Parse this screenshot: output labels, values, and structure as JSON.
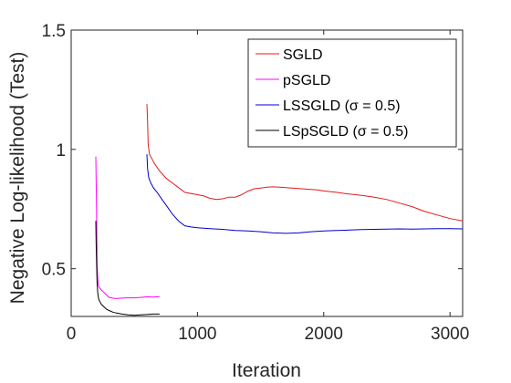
{
  "chart_data": {
    "type": "line",
    "title": "",
    "xlabel": "Iteration",
    "ylabel": "Negative Log-likelihood (Test)",
    "xlim": [
      0,
      3100
    ],
    "ylim": [
      0.3,
      1.5
    ],
    "xticks": [
      0,
      1000,
      2000,
      3000
    ],
    "xtick_labels": [
      "0",
      "1000",
      "2000",
      "3000"
    ],
    "yticks": [
      0.5,
      1,
      1.5
    ],
    "ytick_labels": [
      "0.5",
      "1",
      "1.5"
    ],
    "grid": false,
    "legend_position": "top-right",
    "series": [
      {
        "name": "SGLD",
        "color": "#e41a1c",
        "x": [
          600,
          605,
          610,
          620,
          640,
          660,
          700,
          750,
          800,
          850,
          900,
          950,
          1000,
          1050,
          1100,
          1150,
          1200,
          1250,
          1300,
          1350,
          1400,
          1450,
          1500,
          1550,
          1600,
          1650,
          1700,
          1750,
          1800,
          1850,
          1900,
          1950,
          2000,
          2100,
          2200,
          2300,
          2400,
          2500,
          2600,
          2700,
          2800,
          2900,
          3000,
          3100
        ],
        "y": [
          1.19,
          1.12,
          1.02,
          0.98,
          0.96,
          0.94,
          0.91,
          0.88,
          0.86,
          0.84,
          0.82,
          0.815,
          0.81,
          0.805,
          0.795,
          0.79,
          0.793,
          0.8,
          0.8,
          0.81,
          0.825,
          0.835,
          0.838,
          0.842,
          0.843,
          0.842,
          0.84,
          0.838,
          0.836,
          0.834,
          0.832,
          0.83,
          0.826,
          0.82,
          0.813,
          0.807,
          0.8,
          0.79,
          0.775,
          0.76,
          0.74,
          0.725,
          0.71,
          0.7
        ]
      },
      {
        "name": "pSGLD",
        "color": "#ff00ff",
        "x": [
          195,
          200,
          205,
          210,
          215,
          225,
          240,
          260,
          280,
          300,
          350,
          400,
          450,
          500,
          550,
          600,
          650,
          700
        ],
        "y": [
          0.97,
          0.78,
          0.52,
          0.46,
          0.43,
          0.42,
          0.41,
          0.4,
          0.39,
          0.38,
          0.375,
          0.377,
          0.378,
          0.378,
          0.38,
          0.382,
          0.381,
          0.383
        ]
      },
      {
        "name": "LSSGLD (σ = 0.5)",
        "color": "#0000cc",
        "x": [
          600,
          605,
          615,
          630,
          650,
          680,
          720,
          760,
          800,
          850,
          900,
          950,
          1000,
          1100,
          1200,
          1300,
          1400,
          1500,
          1600,
          1700,
          1800,
          1900,
          2000,
          2100,
          2200,
          2300,
          2400,
          2500,
          2600,
          2700,
          2800,
          2900,
          3000,
          3100
        ],
        "y": [
          0.98,
          0.92,
          0.88,
          0.86,
          0.84,
          0.82,
          0.79,
          0.76,
          0.73,
          0.7,
          0.68,
          0.675,
          0.672,
          0.668,
          0.665,
          0.66,
          0.658,
          0.655,
          0.65,
          0.648,
          0.65,
          0.655,
          0.658,
          0.66,
          0.662,
          0.664,
          0.665,
          0.666,
          0.667,
          0.666,
          0.667,
          0.668,
          0.668,
          0.667
        ]
      },
      {
        "name": "LSpSGLD (σ = 0.5)",
        "color": "#000000",
        "x": [
          195,
          198,
          202,
          205,
          210,
          215,
          220,
          230,
          240,
          260,
          280,
          300,
          330,
          360,
          400,
          450,
          500,
          550,
          600,
          650,
          700
        ],
        "y": [
          0.7,
          0.6,
          0.5,
          0.44,
          0.4,
          0.38,
          0.37,
          0.36,
          0.35,
          0.34,
          0.33,
          0.325,
          0.318,
          0.314,
          0.31,
          0.307,
          0.305,
          0.307,
          0.308,
          0.31,
          0.31
        ]
      }
    ]
  }
}
